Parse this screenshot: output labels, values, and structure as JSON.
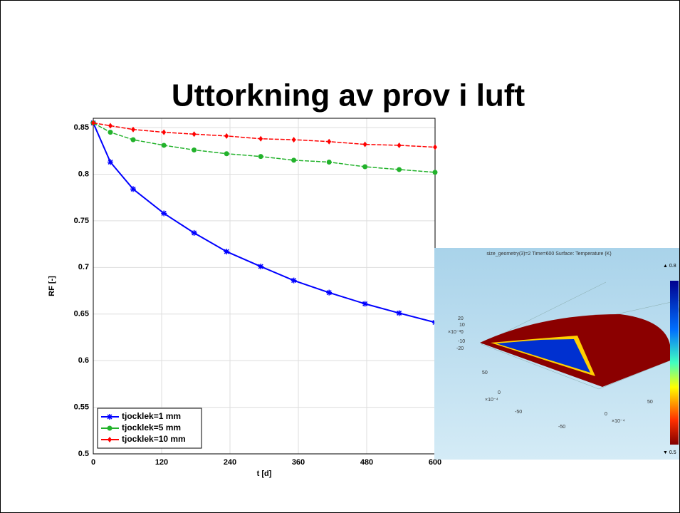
{
  "title": "Uttorkning av prov i luft",
  "chart_data": {
    "type": "line",
    "x_label": "t [d]",
    "y_label": "RF [-]",
    "xlim": [
      0,
      600
    ],
    "xticks": [
      0,
      120,
      240,
      360,
      480,
      600
    ],
    "ylim": [
      0.5,
      0.86
    ],
    "yticks": [
      0.5,
      0.55,
      0.6,
      0.65,
      0.7,
      0.75,
      0.8,
      0.85
    ],
    "grid": true,
    "legend": "lower-left",
    "x": [
      0,
      30,
      70,
      124,
      177,
      234,
      294,
      352,
      414,
      477,
      537,
      600
    ],
    "series": [
      {
        "name": "tjocklek=1 mm",
        "color": "#0000ff",
        "marker": "star",
        "values": [
          0.855,
          0.813,
          0.784,
          0.758,
          0.737,
          0.717,
          0.701,
          0.686,
          0.673,
          0.661,
          0.651,
          0.641
        ]
      },
      {
        "name": "tjocklek=5 mm",
        "color": "#22b22b",
        "marker": "circle",
        "values": [
          0.855,
          0.845,
          0.837,
          0.831,
          0.826,
          0.822,
          0.819,
          0.815,
          0.813,
          0.808,
          0.805,
          0.802
        ]
      },
      {
        "name": "tjocklek=10 mm",
        "color": "#ff0000",
        "marker": "diamond",
        "values": [
          0.855,
          0.852,
          0.848,
          0.845,
          0.843,
          0.841,
          0.838,
          0.837,
          0.835,
          0.832,
          0.831,
          0.829
        ]
      }
    ]
  },
  "inset": {
    "title": "size_geometry(3)=2 Time=600   Surface: Temperature (K)",
    "max_label": "▲ 0.8",
    "min_label": "▼ 0.5",
    "labels": [
      "20",
      "10",
      "×10⁻³0",
      "-10",
      "-20",
      "50",
      "0",
      "×10⁻⁴",
      "-50",
      "0",
      "×10⁻⁴",
      "-50",
      "50"
    ]
  }
}
